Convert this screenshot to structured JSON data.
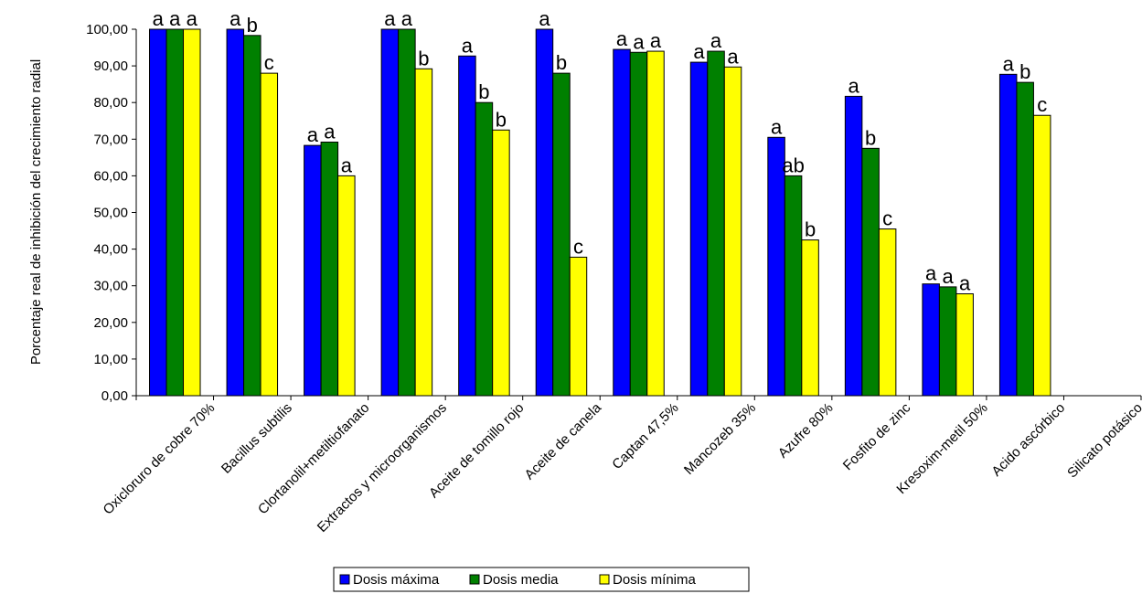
{
  "chart_data": {
    "type": "bar",
    "title": "",
    "xlabel": "",
    "ylabel": "Porcentaje real de inhibición del crecimiento radial",
    "ylim": [
      0,
      100
    ],
    "yticks": [
      "0,00",
      "10,00",
      "20,00",
      "30,00",
      "40,00",
      "50,00",
      "60,00",
      "70,00",
      "80,00",
      "90,00",
      "100,00"
    ],
    "grid": false,
    "legend_position": "bottom-center",
    "categories": [
      "Oxicloruro de cobre 70%",
      "Bacillus subtilis",
      "Clortanolil+metiltiofanato",
      "Extractos y microorganismos",
      "Aceite de tomillo rojo",
      "Aceite de canela",
      "Captan 47,5%",
      "Mancozeb 35%",
      "Azufre 80%",
      "Fosfito de zinc",
      "Kresoxim-metil 50%",
      "Acido ascórbico",
      "Silicato potásico"
    ],
    "series": [
      {
        "name": "Dosis máxima",
        "color": "#0000ff",
        "values": [
          100,
          100,
          68.3,
          100,
          92.7,
          100,
          94.5,
          91,
          70.5,
          81.7,
          30.5,
          87.7,
          null
        ],
        "labels": [
          "a",
          "a",
          "a",
          "a",
          "a",
          "a",
          "a",
          "a",
          "a",
          "a",
          "a",
          "a",
          ""
        ]
      },
      {
        "name": "Dosis media",
        "color": "#008000",
        "values": [
          100,
          98.3,
          69.2,
          100,
          80,
          88,
          93.7,
          94,
          60,
          67.5,
          29.7,
          85.5,
          null
        ],
        "labels": [
          "a",
          "b",
          "a",
          "a",
          "b",
          "b",
          "a",
          "a",
          "ab",
          "b",
          "a",
          "b",
          ""
        ]
      },
      {
        "name": "Dosis mínima",
        "color": "#ffff00",
        "values": [
          100,
          88,
          60,
          89.2,
          72.5,
          37.8,
          94,
          89.7,
          42.5,
          45.5,
          27.8,
          76.5,
          null
        ],
        "labels": [
          "a",
          "c",
          "a",
          "b",
          "b",
          "c",
          "a",
          "a",
          "b",
          "c",
          "a",
          "c",
          ""
        ]
      }
    ]
  }
}
